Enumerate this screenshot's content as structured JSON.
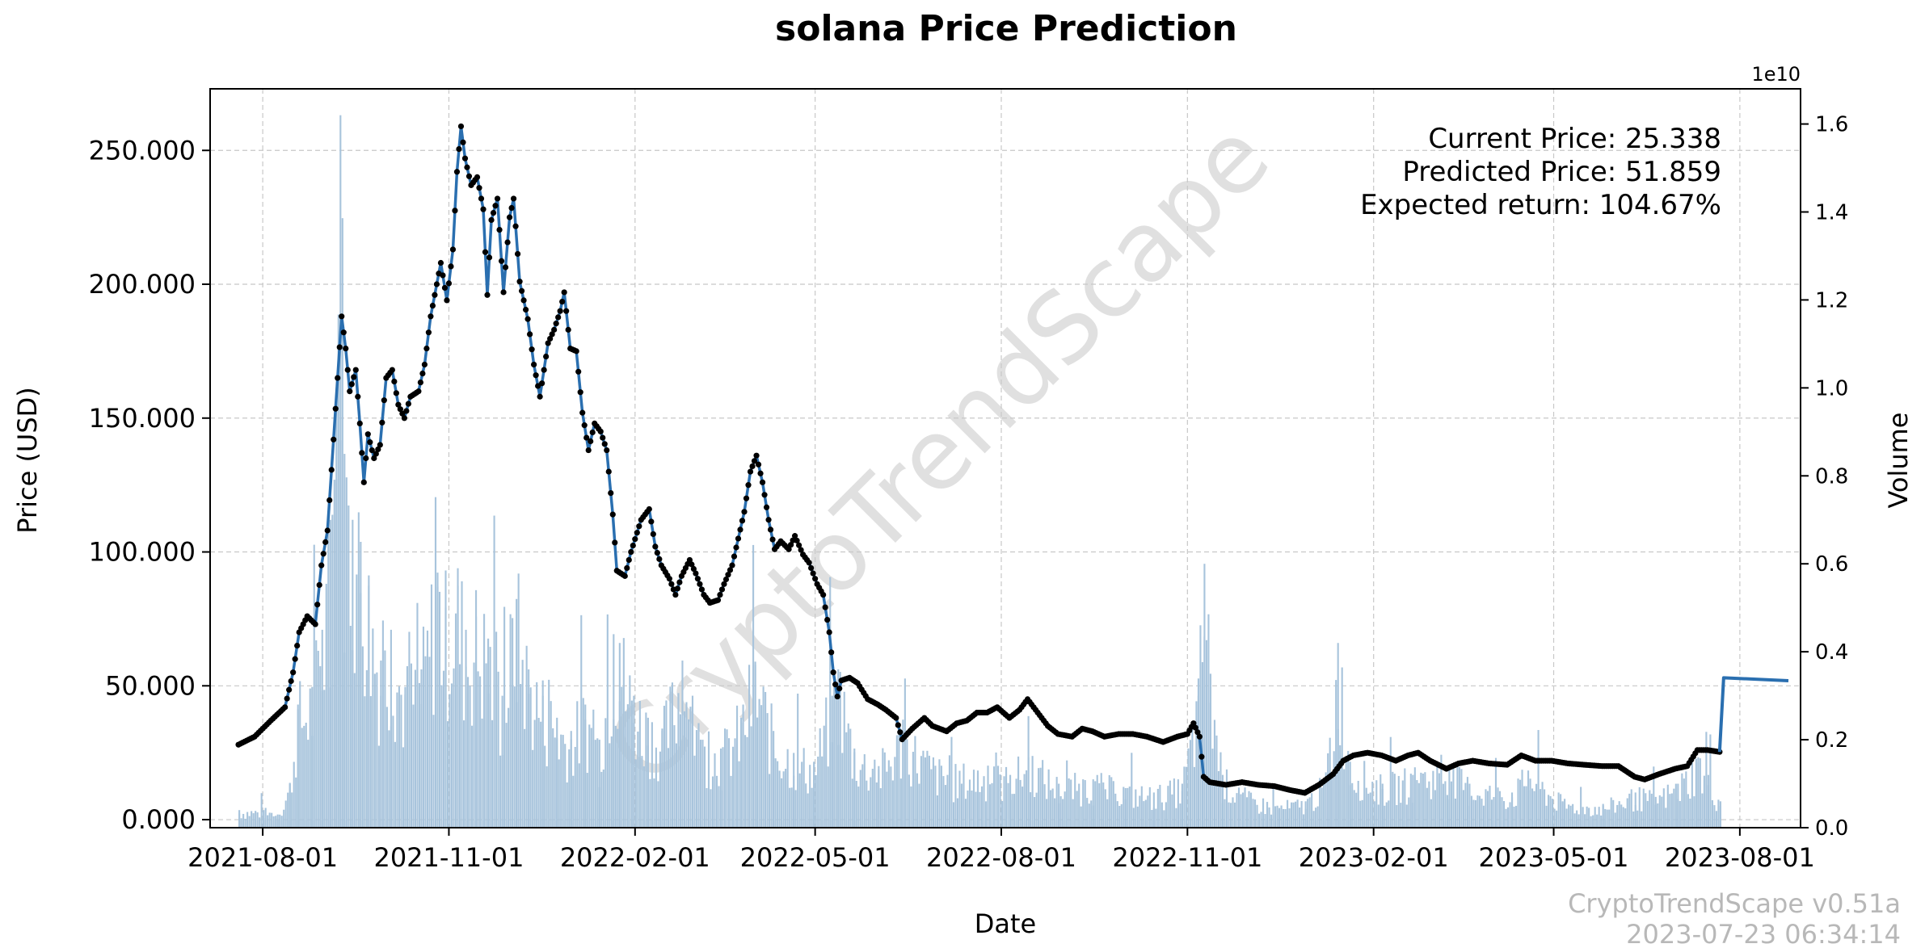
{
  "chart_data": {
    "type": "line",
    "title": "solana Price Prediction",
    "xlabel": "Date",
    "ylabel": "Price (USD)",
    "y2label": "Volume",
    "y2_offset_label": "1e10",
    "watermark": "CryptoTrendScape",
    "footer": [
      "CryptoTrendScape v0.51a",
      "2023-07-23 06:34:14"
    ],
    "annotations": [
      "Current Price: 25.338",
      "Predicted Price: 51.859",
      "Expected return: 104.67%"
    ],
    "x_ticks": [
      "2021-08-01",
      "2021-11-01",
      "2022-02-01",
      "2022-05-01",
      "2022-08-01",
      "2022-11-01",
      "2023-02-01",
      "2023-05-01",
      "2023-08-01"
    ],
    "y_ticks": [
      "0.000",
      "50.000",
      "100.000",
      "150.000",
      "200.000",
      "250.000"
    ],
    "y2_ticks": [
      "0.0",
      "0.2",
      "0.4",
      "0.6",
      "0.8",
      "1.0",
      "1.2",
      "1.4",
      "1.6"
    ],
    "xlim": [
      "2021-07-06",
      "2023-08-31"
    ],
    "ylim": [
      -3,
      273
    ],
    "y2lim": [
      0,
      1.68
    ],
    "grid": true,
    "colors": {
      "price_line": "#2a6fb0",
      "price_marker": "#000000",
      "prediction_line": "#2a6fb0",
      "volume_bar": "#a8c4dc"
    },
    "series": [
      {
        "name": "Price",
        "points": [
          [
            "2021-07-20",
            28
          ],
          [
            "2021-07-28",
            31
          ],
          [
            "2021-08-05",
            37
          ],
          [
            "2021-08-12",
            42
          ],
          [
            "2021-08-16",
            55
          ],
          [
            "2021-08-19",
            70
          ],
          [
            "2021-08-23",
            76
          ],
          [
            "2021-08-27",
            73
          ],
          [
            "2021-08-30",
            95
          ],
          [
            "2021-09-02",
            108
          ],
          [
            "2021-09-05",
            142
          ],
          [
            "2021-09-07",
            165
          ],
          [
            "2021-09-09",
            188
          ],
          [
            "2021-09-11",
            176
          ],
          [
            "2021-09-13",
            160
          ],
          [
            "2021-09-16",
            168
          ],
          [
            "2021-09-18",
            148
          ],
          [
            "2021-09-20",
            126
          ],
          [
            "2021-09-22",
            144
          ],
          [
            "2021-09-25",
            135
          ],
          [
            "2021-09-28",
            140
          ],
          [
            "2021-10-01",
            165
          ],
          [
            "2021-10-04",
            168
          ],
          [
            "2021-10-07",
            155
          ],
          [
            "2021-10-10",
            150
          ],
          [
            "2021-10-13",
            158
          ],
          [
            "2021-10-17",
            160
          ],
          [
            "2021-10-20",
            170
          ],
          [
            "2021-10-23",
            188
          ],
          [
            "2021-10-26",
            200
          ],
          [
            "2021-10-28",
            208
          ],
          [
            "2021-10-31",
            194
          ],
          [
            "2021-11-03",
            213
          ],
          [
            "2021-11-05",
            242
          ],
          [
            "2021-11-07",
            259
          ],
          [
            "2021-11-09",
            247
          ],
          [
            "2021-11-12",
            237
          ],
          [
            "2021-11-15",
            240
          ],
          [
            "2021-11-18",
            228
          ],
          [
            "2021-11-20",
            196
          ],
          [
            "2021-11-22",
            224
          ],
          [
            "2021-11-25",
            232
          ],
          [
            "2021-11-28",
            197
          ],
          [
            "2021-12-01",
            225
          ],
          [
            "2021-12-03",
            232
          ],
          [
            "2021-12-06",
            201
          ],
          [
            "2021-12-10",
            187
          ],
          [
            "2021-12-13",
            170
          ],
          [
            "2021-12-16",
            158
          ],
          [
            "2021-12-20",
            178
          ],
          [
            "2021-12-23",
            183
          ],
          [
            "2021-12-26",
            190
          ],
          [
            "2021-12-28",
            197
          ],
          [
            "2021-12-31",
            176
          ],
          [
            "2022-01-03",
            175
          ],
          [
            "2022-01-06",
            152
          ],
          [
            "2022-01-09",
            138
          ],
          [
            "2022-01-12",
            148
          ],
          [
            "2022-01-15",
            145
          ],
          [
            "2022-01-18",
            138
          ],
          [
            "2022-01-21",
            114
          ],
          [
            "2022-01-23",
            93
          ],
          [
            "2022-01-27",
            91
          ],
          [
            "2022-01-30",
            100
          ],
          [
            "2022-02-04",
            112
          ],
          [
            "2022-02-08",
            116
          ],
          [
            "2022-02-11",
            102
          ],
          [
            "2022-02-14",
            95
          ],
          [
            "2022-02-18",
            90
          ],
          [
            "2022-02-21",
            84
          ],
          [
            "2022-02-24",
            91
          ],
          [
            "2022-02-28",
            97
          ],
          [
            "2022-03-03",
            92
          ],
          [
            "2022-03-07",
            84
          ],
          [
            "2022-03-10",
            81
          ],
          [
            "2022-03-14",
            82
          ],
          [
            "2022-03-17",
            88
          ],
          [
            "2022-03-21",
            95
          ],
          [
            "2022-03-24",
            105
          ],
          [
            "2022-03-27",
            115
          ],
          [
            "2022-03-30",
            130
          ],
          [
            "2022-04-02",
            136
          ],
          [
            "2022-04-05",
            126
          ],
          [
            "2022-04-08",
            112
          ],
          [
            "2022-04-11",
            101
          ],
          [
            "2022-04-14",
            104
          ],
          [
            "2022-04-18",
            101
          ],
          [
            "2022-04-21",
            106
          ],
          [
            "2022-04-25",
            99
          ],
          [
            "2022-04-28",
            96
          ],
          [
            "2022-05-02",
            88
          ],
          [
            "2022-05-05",
            84
          ],
          [
            "2022-05-08",
            70
          ],
          [
            "2022-05-10",
            55
          ],
          [
            "2022-05-12",
            46
          ],
          [
            "2022-05-14",
            52
          ],
          [
            "2022-05-18",
            53
          ],
          [
            "2022-05-22",
            51
          ],
          [
            "2022-05-27",
            45
          ],
          [
            "2022-06-01",
            43
          ],
          [
            "2022-06-05",
            41
          ],
          [
            "2022-06-10",
            38
          ],
          [
            "2022-06-13",
            30
          ],
          [
            "2022-06-18",
            34
          ],
          [
            "2022-06-24",
            38
          ],
          [
            "2022-06-28",
            35
          ],
          [
            "2022-07-05",
            33
          ],
          [
            "2022-07-10",
            36
          ],
          [
            "2022-07-15",
            37
          ],
          [
            "2022-07-20",
            40
          ],
          [
            "2022-07-25",
            40
          ],
          [
            "2022-07-30",
            42
          ],
          [
            "2022-08-05",
            38
          ],
          [
            "2022-08-10",
            41
          ],
          [
            "2022-08-14",
            45
          ],
          [
            "2022-08-19",
            40
          ],
          [
            "2022-08-24",
            35
          ],
          [
            "2022-08-29",
            32
          ],
          [
            "2022-09-05",
            31
          ],
          [
            "2022-09-10",
            34
          ],
          [
            "2022-09-15",
            33
          ],
          [
            "2022-09-21",
            31
          ],
          [
            "2022-09-28",
            32
          ],
          [
            "2022-10-05",
            32
          ],
          [
            "2022-10-12",
            31
          ],
          [
            "2022-10-20",
            29
          ],
          [
            "2022-10-27",
            31
          ],
          [
            "2022-11-01",
            32
          ],
          [
            "2022-11-04",
            36
          ],
          [
            "2022-11-07",
            31
          ],
          [
            "2022-11-09",
            16
          ],
          [
            "2022-11-12",
            14
          ],
          [
            "2022-11-20",
            13
          ],
          [
            "2022-11-28",
            14
          ],
          [
            "2022-12-06",
            13
          ],
          [
            "2022-12-14",
            12.5
          ],
          [
            "2022-12-22",
            11
          ],
          [
            "2022-12-29",
            10
          ],
          [
            "2023-01-05",
            13
          ],
          [
            "2023-01-12",
            17
          ],
          [
            "2023-01-17",
            22
          ],
          [
            "2023-01-22",
            24
          ],
          [
            "2023-01-29",
            25
          ],
          [
            "2023-02-05",
            24
          ],
          [
            "2023-02-12",
            22
          ],
          [
            "2023-02-18",
            24
          ],
          [
            "2023-02-23",
            25
          ],
          [
            "2023-03-01",
            22
          ],
          [
            "2023-03-09",
            19
          ],
          [
            "2023-03-15",
            21
          ],
          [
            "2023-03-22",
            22
          ],
          [
            "2023-03-30",
            21
          ],
          [
            "2023-04-08",
            20.5
          ],
          [
            "2023-04-15",
            24
          ],
          [
            "2023-04-22",
            22
          ],
          [
            "2023-04-30",
            22
          ],
          [
            "2023-05-08",
            21
          ],
          [
            "2023-05-16",
            20.5
          ],
          [
            "2023-05-25",
            20
          ],
          [
            "2023-06-02",
            20
          ],
          [
            "2023-06-10",
            16
          ],
          [
            "2023-06-15",
            15
          ],
          [
            "2023-06-22",
            17
          ],
          [
            "2023-06-30",
            19
          ],
          [
            "2023-07-06",
            20
          ],
          [
            "2023-07-11",
            26
          ],
          [
            "2023-07-16",
            26
          ],
          [
            "2023-07-22",
            25.3
          ]
        ]
      },
      {
        "name": "Prediction",
        "points": [
          [
            "2023-07-22",
            25.3
          ],
          [
            "2023-07-24",
            53
          ],
          [
            "2023-08-25",
            51.9
          ]
        ]
      }
    ],
    "volume": {
      "unit_scale": 10000000000,
      "points": [
        [
          "2021-07-20",
          0.04
        ],
        [
          "2021-08-01",
          0.04
        ],
        [
          "2021-08-08",
          0.03
        ],
        [
          "2021-08-14",
          0.1
        ],
        [
          "2021-08-18",
          0.28
        ],
        [
          "2021-08-25",
          0.32
        ],
        [
          "2021-08-30",
          0.45
        ],
        [
          "2021-09-03",
          0.7
        ],
        [
          "2021-09-06",
          1.0
        ],
        [
          "2021-09-08",
          1.62
        ],
        [
          "2021-09-10",
          0.85
        ],
        [
          "2021-09-14",
          0.7
        ],
        [
          "2021-09-18",
          0.65
        ],
        [
          "2021-09-22",
          0.55
        ],
        [
          "2021-09-28",
          0.38
        ],
        [
          "2021-10-03",
          0.45
        ],
        [
          "2021-10-10",
          0.32
        ],
        [
          "2021-10-18",
          0.36
        ],
        [
          "2021-10-26",
          0.58
        ],
        [
          "2021-10-30",
          0.5
        ],
        [
          "2021-11-05",
          0.55
        ],
        [
          "2021-11-09",
          0.45
        ],
        [
          "2021-11-14",
          0.48
        ],
        [
          "2021-11-20",
          0.43
        ],
        [
          "2021-11-27",
          0.3
        ],
        [
          "2021-12-04",
          0.52
        ],
        [
          "2021-12-10",
          0.36
        ],
        [
          "2021-12-17",
          0.3
        ],
        [
          "2021-12-24",
          0.25
        ],
        [
          "2021-12-31",
          0.22
        ],
        [
          "2022-01-07",
          0.28
        ],
        [
          "2022-01-14",
          0.2
        ],
        [
          "2022-01-21",
          0.44
        ],
        [
          "2022-01-24",
          0.42
        ],
        [
          "2022-01-31",
          0.3
        ],
        [
          "2022-02-07",
          0.25
        ],
        [
          "2022-02-14",
          0.22
        ],
        [
          "2022-02-24",
          0.38
        ],
        [
          "2022-03-05",
          0.2
        ],
        [
          "2022-03-15",
          0.18
        ],
        [
          "2022-03-25",
          0.25
        ],
        [
          "2022-04-01",
          0.37
        ],
        [
          "2022-04-10",
          0.22
        ],
        [
          "2022-04-20",
          0.17
        ],
        [
          "2022-04-30",
          0.15
        ],
        [
          "2022-05-09",
          0.3
        ],
        [
          "2022-05-12",
          0.36
        ],
        [
          "2022-05-20",
          0.18
        ],
        [
          "2022-06-01",
          0.14
        ],
        [
          "2022-06-13",
          0.22
        ],
        [
          "2022-06-25",
          0.16
        ],
        [
          "2022-07-05",
          0.12
        ],
        [
          "2022-07-20",
          0.13
        ],
        [
          "2022-08-05",
          0.12
        ],
        [
          "2022-08-14",
          0.16
        ],
        [
          "2022-08-29",
          0.1
        ],
        [
          "2022-09-15",
          0.11
        ],
        [
          "2022-10-01",
          0.09
        ],
        [
          "2022-10-15",
          0.08
        ],
        [
          "2022-10-29",
          0.1
        ],
        [
          "2022-11-06",
          0.3
        ],
        [
          "2022-11-09",
          0.6
        ],
        [
          "2022-11-12",
          0.35
        ],
        [
          "2022-11-18",
          0.12
        ],
        [
          "2022-12-01",
          0.07
        ],
        [
          "2022-12-15",
          0.05
        ],
        [
          "2022-12-29",
          0.06
        ],
        [
          "2023-01-10",
          0.12
        ],
        [
          "2023-01-14",
          0.42
        ],
        [
          "2023-01-20",
          0.15
        ],
        [
          "2023-02-05",
          0.1
        ],
        [
          "2023-02-20",
          0.12
        ],
        [
          "2023-03-10",
          0.14
        ],
        [
          "2023-03-20",
          0.1
        ],
        [
          "2023-04-10",
          0.08
        ],
        [
          "2023-04-18",
          0.13
        ],
        [
          "2023-05-05",
          0.06
        ],
        [
          "2023-05-25",
          0.05
        ],
        [
          "2023-06-10",
          0.08
        ],
        [
          "2023-06-20",
          0.07
        ],
        [
          "2023-07-01",
          0.1
        ],
        [
          "2023-07-11",
          0.16
        ],
        [
          "2023-07-16",
          0.12
        ],
        [
          "2023-07-22",
          0.06
        ]
      ]
    }
  }
}
